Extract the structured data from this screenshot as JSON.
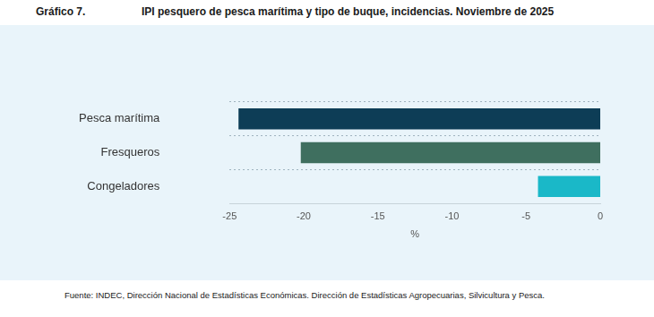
{
  "chart_data": {
    "type": "bar",
    "orientation": "horizontal",
    "figure_number": "Gráfico 7.",
    "title": "IPI pesquero de pesca marítima y tipo de buque, incidencias. Noviembre de 2025",
    "x_label": "%",
    "source": "Fuente: INDEC, Dirección Nacional de Estadísticas Económicas. Dirección de Estadísticas Agropecuarias, Silvicultura y Pesca.",
    "categories": [
      "Pesca marítima",
      "Fresqueros",
      "Congeladores"
    ],
    "values": [
      -24.4,
      -20.2,
      -4.2
    ],
    "colors": [
      "#0d3d56",
      "#3f6f5f",
      "#1ab8c8"
    ],
    "xlim": [
      -25,
      0
    ],
    "xticks": [
      -25,
      -20,
      -15,
      -10,
      -5,
      0
    ],
    "grid": true
  }
}
